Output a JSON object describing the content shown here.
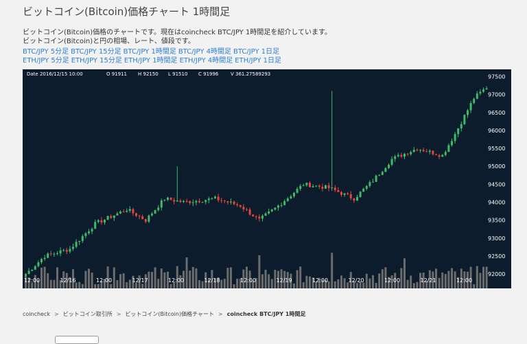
{
  "page": {
    "title": "ビットコイン(Bitcoin)価格チャート 1時間足",
    "intro_line1": "ビットコイン(Bitcoin)価格のチャートです。現在はcoincheck BTC/JPY 1時間足を紹介しています。",
    "intro_line2": "ビットコイン(Bitcoin)と円の相場、レート、値段です。"
  },
  "links": {
    "btc": [
      "BTC/JPY 5分足",
      "BTC/JPY 15分足",
      "BTC/JPY 1時間足",
      "BTC/JPY 4時間足",
      "BTC/JPY 1日足"
    ],
    "eth": [
      "ETH/JPY 5分足",
      "ETH/JPY 15分足",
      "ETH/JPY 1時間足",
      "ETH/JPY 4時間足",
      "ETH/JPY 1日足"
    ]
  },
  "colors": {
    "link": "#2a7fd4",
    "chart_bg": "#0c1c2c",
    "up": "#3dbb6a",
    "down": "#e2463b",
    "volume": "#6c6c6c"
  },
  "ohlc_info": {
    "date": "Date 2016/12/15 10:00",
    "open": "O 91911",
    "high": "H 92150",
    "low": "L 91510",
    "close": "C 91996",
    "volume": "V 361.27589293"
  },
  "chart_data": {
    "type": "candlestick",
    "y_ticks": [
      "97500",
      "97000",
      "96500",
      "96000",
      "95500",
      "95000",
      "94500",
      "94000",
      "93500",
      "93000",
      "92500",
      "92000"
    ],
    "x_labels": [
      "12:00",
      "12/16",
      "12:00",
      "12/17",
      "12:00",
      "12/18",
      "12:00",
      "12/19",
      "12:00",
      "12/20",
      "12:00",
      "12/21",
      "12:00"
    ],
    "ylim": [
      91600,
      97700
    ],
    "close_trend": [
      [
        0,
        92000
      ],
      [
        6,
        92500
      ],
      [
        14,
        92700
      ],
      [
        22,
        93400
      ],
      [
        32,
        93800
      ],
      [
        38,
        93500
      ],
      [
        44,
        94100
      ],
      [
        50,
        94000
      ],
      [
        60,
        94100
      ],
      [
        68,
        93900
      ],
      [
        74,
        93500
      ],
      [
        80,
        93900
      ],
      [
        88,
        94500
      ],
      [
        96,
        94400
      ],
      [
        104,
        94100
      ],
      [
        110,
        94600
      ],
      [
        116,
        95200
      ],
      [
        124,
        95500
      ],
      [
        132,
        95300
      ],
      [
        136,
        95900
      ],
      [
        142,
        96900
      ],
      [
        146,
        97200
      ]
    ],
    "spikes": [
      {
        "candle": 48,
        "high": 95000
      },
      {
        "candle": 97,
        "high": 97100
      }
    ]
  },
  "breadcrumb": {
    "items": [
      "coincheck",
      "ビットコイン取引所",
      "ビットコイン(Bitcoin)価格チャート"
    ],
    "current": "coincheck BTC/JPY 1時間足"
  }
}
